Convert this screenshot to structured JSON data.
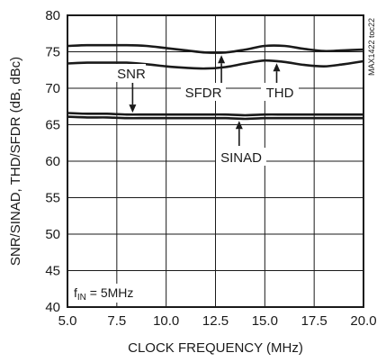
{
  "chart_data": {
    "type": "line",
    "xlabel": "CLOCK FREQUENCY (MHz)",
    "ylabel": "SNR/SINAD, THD/SFDR (dB, dBc)",
    "xlim": [
      5,
      20
    ],
    "ylim": [
      40,
      80
    ],
    "xticks": [
      "5.0",
      "7.5",
      "10.0",
      "12.5",
      "15.0",
      "17.5",
      "20.0"
    ],
    "yticks": [
      "40",
      "45",
      "50",
      "55",
      "60",
      "65",
      "70",
      "75",
      "80"
    ],
    "grid": true,
    "series": [
      {
        "name": "SFDR",
        "x": [
          5,
          6,
          7,
          8,
          9,
          10,
          11,
          12,
          13,
          14,
          15,
          16,
          17,
          18,
          19,
          20
        ],
        "values": [
          75.8,
          75.9,
          75.9,
          75.9,
          75.8,
          75.5,
          75.2,
          74.9,
          74.9,
          75.3,
          75.8,
          75.8,
          75.4,
          75.1,
          75.2,
          75.3
        ]
      },
      {
        "name": "THD",
        "x": [
          5,
          6,
          7,
          8,
          9,
          10,
          11,
          12,
          13,
          14,
          15,
          16,
          17,
          18,
          19,
          20
        ],
        "values": [
          73.4,
          73.5,
          73.5,
          73.5,
          73.3,
          73.0,
          72.8,
          72.7,
          72.9,
          73.4,
          73.8,
          73.6,
          73.2,
          73.0,
          73.3,
          73.7
        ]
      },
      {
        "name": "SNR",
        "x": [
          5,
          6,
          7,
          8,
          9,
          10,
          11,
          12,
          13,
          14,
          15,
          16,
          17,
          18,
          19,
          20
        ],
        "values": [
          66.6,
          66.5,
          66.5,
          66.4,
          66.4,
          66.4,
          66.4,
          66.4,
          66.4,
          66.3,
          66.4,
          66.4,
          66.4,
          66.4,
          66.4,
          66.4
        ]
      },
      {
        "name": "SINAD",
        "x": [
          5,
          6,
          7,
          8,
          9,
          10,
          11,
          12,
          13,
          14,
          15,
          16,
          17,
          18,
          19,
          20
        ],
        "values": [
          66.1,
          66.0,
          66.0,
          65.9,
          65.9,
          65.9,
          65.9,
          65.9,
          65.9,
          65.8,
          65.9,
          65.9,
          65.9,
          65.9,
          65.9,
          65.9
        ]
      }
    ],
    "annotations": {
      "snr": "SNR",
      "sfdr": "SFDR",
      "thd": "THD",
      "sinad": "SINAD",
      "fin_prefix": "f",
      "fin_sub": "IN",
      "fin_suffix": " = 5MHz",
      "code": "MAX1422 toc22"
    }
  }
}
